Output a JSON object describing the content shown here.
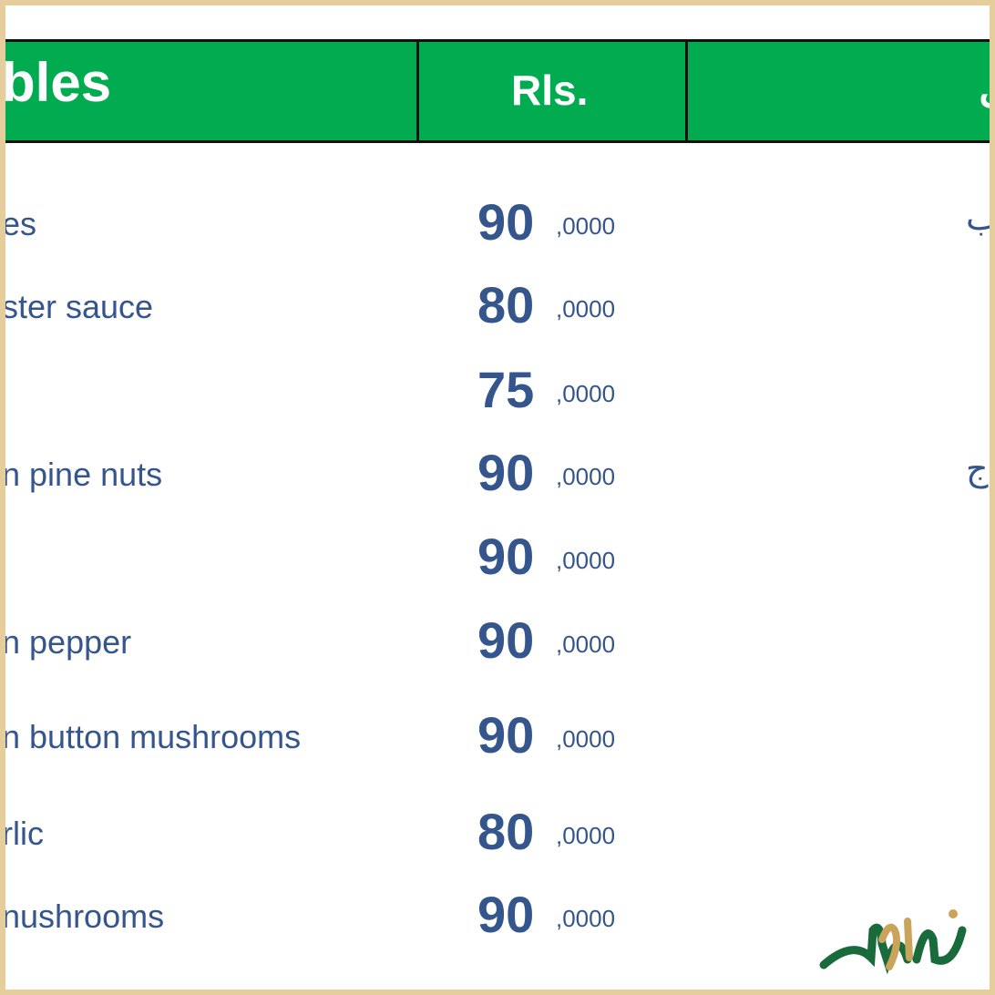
{
  "header": {
    "title": "bles",
    "price_col": "Rls.",
    "arabic_col": "ل"
  },
  "items": [
    {
      "name": "es",
      "price": "90",
      "decimal": ",0000",
      "arabic": "ب"
    },
    {
      "name": "ster sauce",
      "price": "80",
      "decimal": ",0000",
      "arabic": ""
    },
    {
      "name": "",
      "price": "75",
      "decimal": ",0000",
      "arabic": ""
    },
    {
      "name": "n pine nuts",
      "price": "90",
      "decimal": ",0000",
      "arabic": "ج"
    },
    {
      "name": "",
      "price": "90",
      "decimal": ",0000",
      "arabic": ""
    },
    {
      "name": "n pepper",
      "price": "90",
      "decimal": ",0000",
      "arabic": ""
    },
    {
      "name": "n button mushrooms",
      "price": "90",
      "decimal": ",0000",
      "arabic": ""
    },
    {
      "name": "rlic",
      "price": "80",
      "decimal": ",0000",
      "arabic": ""
    },
    {
      "name": "nushrooms",
      "price": "90",
      "decimal": ",0000",
      "arabic": ""
    }
  ],
  "logo": {
    "text": "غذاوقدر"
  },
  "colors": {
    "header_green": "#00ac4f",
    "text_blue": "#34568c",
    "frame": "#e6cd9c",
    "logo_green": "#1a6b3c",
    "logo_gold": "#c9a45a"
  }
}
